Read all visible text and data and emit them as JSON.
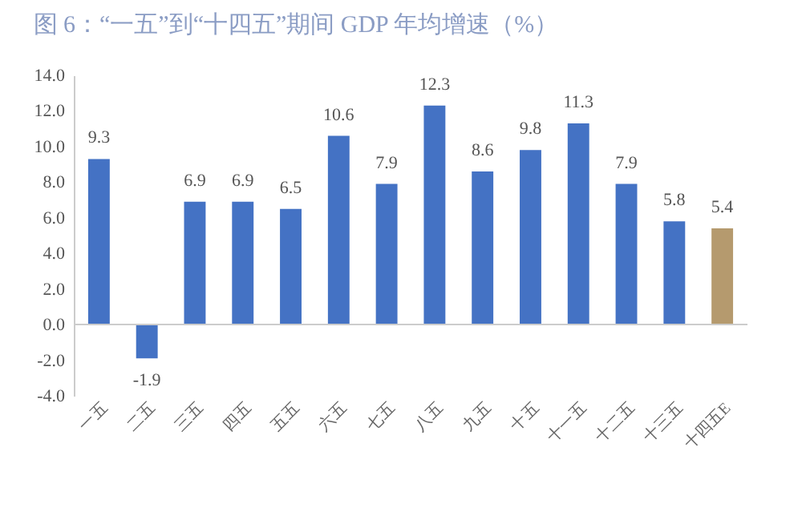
{
  "chart_data": {
    "type": "bar",
    "title": "图 6：“一五”到“十四五”期间 GDP 年均增速（%）",
    "categories": [
      "一五",
      "二五",
      "三五",
      "四五",
      "五五",
      "六五",
      "七五",
      "八五",
      "九五",
      "十五",
      "十一五",
      "十二五",
      "十三五",
      "十四五E"
    ],
    "values": [
      9.3,
      -1.9,
      6.9,
      6.9,
      6.5,
      10.6,
      7.9,
      12.3,
      8.6,
      9.8,
      11.3,
      7.9,
      5.8,
      5.4
    ],
    "colors": [
      "#4472c4",
      "#4472c4",
      "#4472c4",
      "#4472c4",
      "#4472c4",
      "#4472c4",
      "#4472c4",
      "#4472c4",
      "#4472c4",
      "#4472c4",
      "#4472c4",
      "#4472c4",
      "#4472c4",
      "#b59a6e"
    ],
    "ylim": [
      -4,
      14
    ],
    "yticks": [
      {
        "value": -4,
        "label": "-4.0"
      },
      {
        "value": -2,
        "label": "-2.0"
      },
      {
        "value": 0,
        "label": "0.0"
      },
      {
        "value": 2,
        "label": "2.0"
      },
      {
        "value": 4,
        "label": "4.0"
      },
      {
        "value": 6,
        "label": "6.0"
      },
      {
        "value": 8,
        "label": "8.0"
      },
      {
        "value": 10,
        "label": "10.0"
      },
      {
        "value": 12,
        "label": "12.0"
      },
      {
        "value": 14,
        "label": "14.0"
      }
    ],
    "data_labels": true
  }
}
